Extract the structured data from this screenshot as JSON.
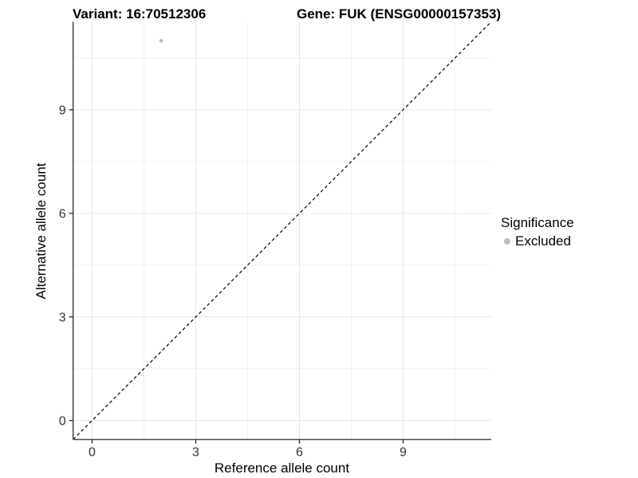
{
  "chart_data": {
    "type": "scatter",
    "titles": {
      "left": "Variant: 16:70512306",
      "right": "Gene: FUK (ENSG00000157353)"
    },
    "xlabel": "Reference allele count",
    "ylabel": "Alternative allele count",
    "xlim": [
      -0.55,
      11.55
    ],
    "ylim": [
      -0.55,
      11.55
    ],
    "x_ticks": [
      0,
      3,
      6,
      9
    ],
    "y_ticks": [
      0,
      3,
      6,
      9
    ],
    "x_minor_ticks": [
      1.5,
      4.5,
      7.5,
      10.5
    ],
    "y_minor_ticks": [
      1.5,
      4.5,
      7.5,
      10.5
    ],
    "grid": true,
    "background": "#ffffff",
    "identity_line": {
      "style": "dashed",
      "color": "#000000",
      "slope": 1,
      "intercept": 0
    },
    "series": [
      {
        "name": "Excluded",
        "color": "#bebebe",
        "points": [
          [
            2,
            11
          ]
        ]
      }
    ],
    "legend": {
      "title": "Significance",
      "position": "right",
      "items": [
        {
          "label": "Excluded",
          "color": "#bebebe"
        }
      ]
    },
    "colors": {
      "grid_major": "#e6e6e6",
      "grid_minor": "#f1f1f1",
      "axis_line": "#4a4a4a",
      "tick_mark": "#333333",
      "tick_text": "#333333"
    }
  }
}
